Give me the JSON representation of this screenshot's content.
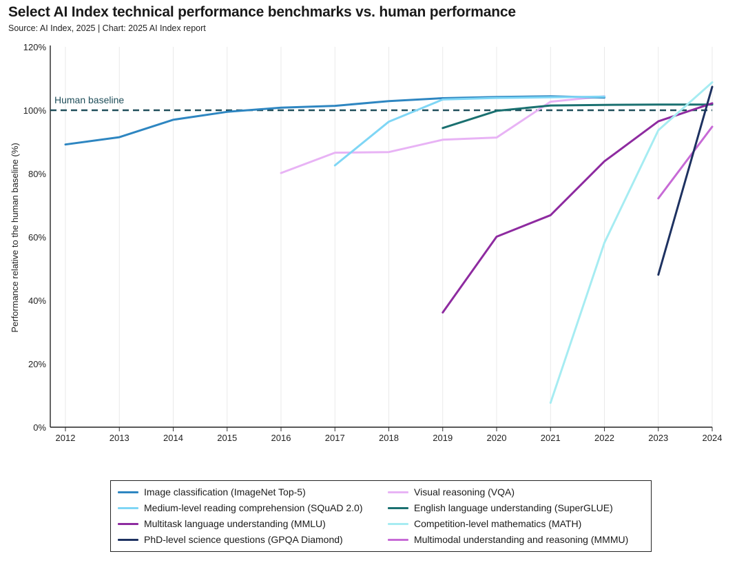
{
  "header": {
    "title": "Select AI Index technical performance benchmarks vs. human performance",
    "subtitle": "Source: AI Index, 2025 | Chart: 2025 AI Index report"
  },
  "chart_data": {
    "type": "line",
    "ylabel": "Performance relative to the human baseline (%)",
    "xlabel": "",
    "x": [
      "2012",
      "2013",
      "2014",
      "2015",
      "2016",
      "2017",
      "2018",
      "2019",
      "2020",
      "2021",
      "2022",
      "2023",
      "2024"
    ],
    "ylim": [
      0,
      120
    ],
    "yticks": [
      "0%",
      "20%",
      "40%",
      "60%",
      "80%",
      "100%",
      "120%"
    ],
    "grid": "vertical",
    "baseline": {
      "label": "Human baseline",
      "value": 100,
      "color": "#1f4e5a"
    },
    "series": [
      {
        "name": "Image classification (ImageNet Top-5)",
        "color": "#2e86c1",
        "points": [
          [
            2012,
            89.2
          ],
          [
            2013,
            91.5
          ],
          [
            2014,
            97
          ],
          [
            2015,
            99.5
          ],
          [
            2016,
            100.8
          ],
          [
            2017,
            101.4
          ],
          [
            2018,
            102.9
          ],
          [
            2019,
            103.8
          ],
          [
            2020,
            104.2
          ],
          [
            2021,
            104.4
          ],
          [
            2022,
            104
          ]
        ]
      },
      {
        "name": "Medium-level reading comprehension (SQuAD 2.0)",
        "color": "#7fd6f5",
        "points": [
          [
            2017,
            82.6
          ],
          [
            2018,
            96.4
          ],
          [
            2019,
            103.4
          ],
          [
            2020,
            103.9
          ],
          [
            2021,
            104.1
          ],
          [
            2022,
            104.3
          ]
        ]
      },
      {
        "name": "Multitask language understanding (MMLU)",
        "color": "#8e2ba0",
        "points": [
          [
            2019,
            36.2
          ],
          [
            2020,
            60.1
          ],
          [
            2021,
            66.9
          ],
          [
            2022,
            83.9
          ],
          [
            2023,
            96.5
          ],
          [
            2024,
            102.2
          ]
        ]
      },
      {
        "name": "PhD-level science questions (GPQA Diamond)",
        "color": "#1e3261",
        "points": [
          [
            2023,
            48.1
          ],
          [
            2024,
            107.4
          ]
        ]
      },
      {
        "name": "Visual reasoning (VQA)",
        "color": "#e8b3f5",
        "points": [
          [
            2016,
            80.2
          ],
          [
            2017,
            86.6
          ],
          [
            2018,
            86.8
          ],
          [
            2019,
            90.7
          ],
          [
            2020,
            91.4
          ],
          [
            2021,
            102.7
          ],
          [
            2022,
            104.4
          ]
        ]
      },
      {
        "name": "English language understanding (SuperGLUE)",
        "color": "#1a7070",
        "points": [
          [
            2019,
            94.4
          ],
          [
            2020,
            99.8
          ],
          [
            2021,
            101.5
          ],
          [
            2022,
            101.7
          ],
          [
            2023,
            101.8
          ],
          [
            2024,
            101.8
          ]
        ]
      },
      {
        "name": "Competition-level mathematics (MATH)",
        "color": "#a6ecf2",
        "points": [
          [
            2021,
            7.7
          ],
          [
            2022,
            58.2
          ],
          [
            2023,
            93.7
          ],
          [
            2024,
            108.8
          ]
        ]
      },
      {
        "name": "Multimodal understanding and reasoning (MMMU)",
        "color": "#c76ad6",
        "points": [
          [
            2023,
            72.2
          ],
          [
            2024,
            94.8
          ]
        ]
      }
    ],
    "legend": {
      "placement": "bottom",
      "columns": 2
    }
  }
}
